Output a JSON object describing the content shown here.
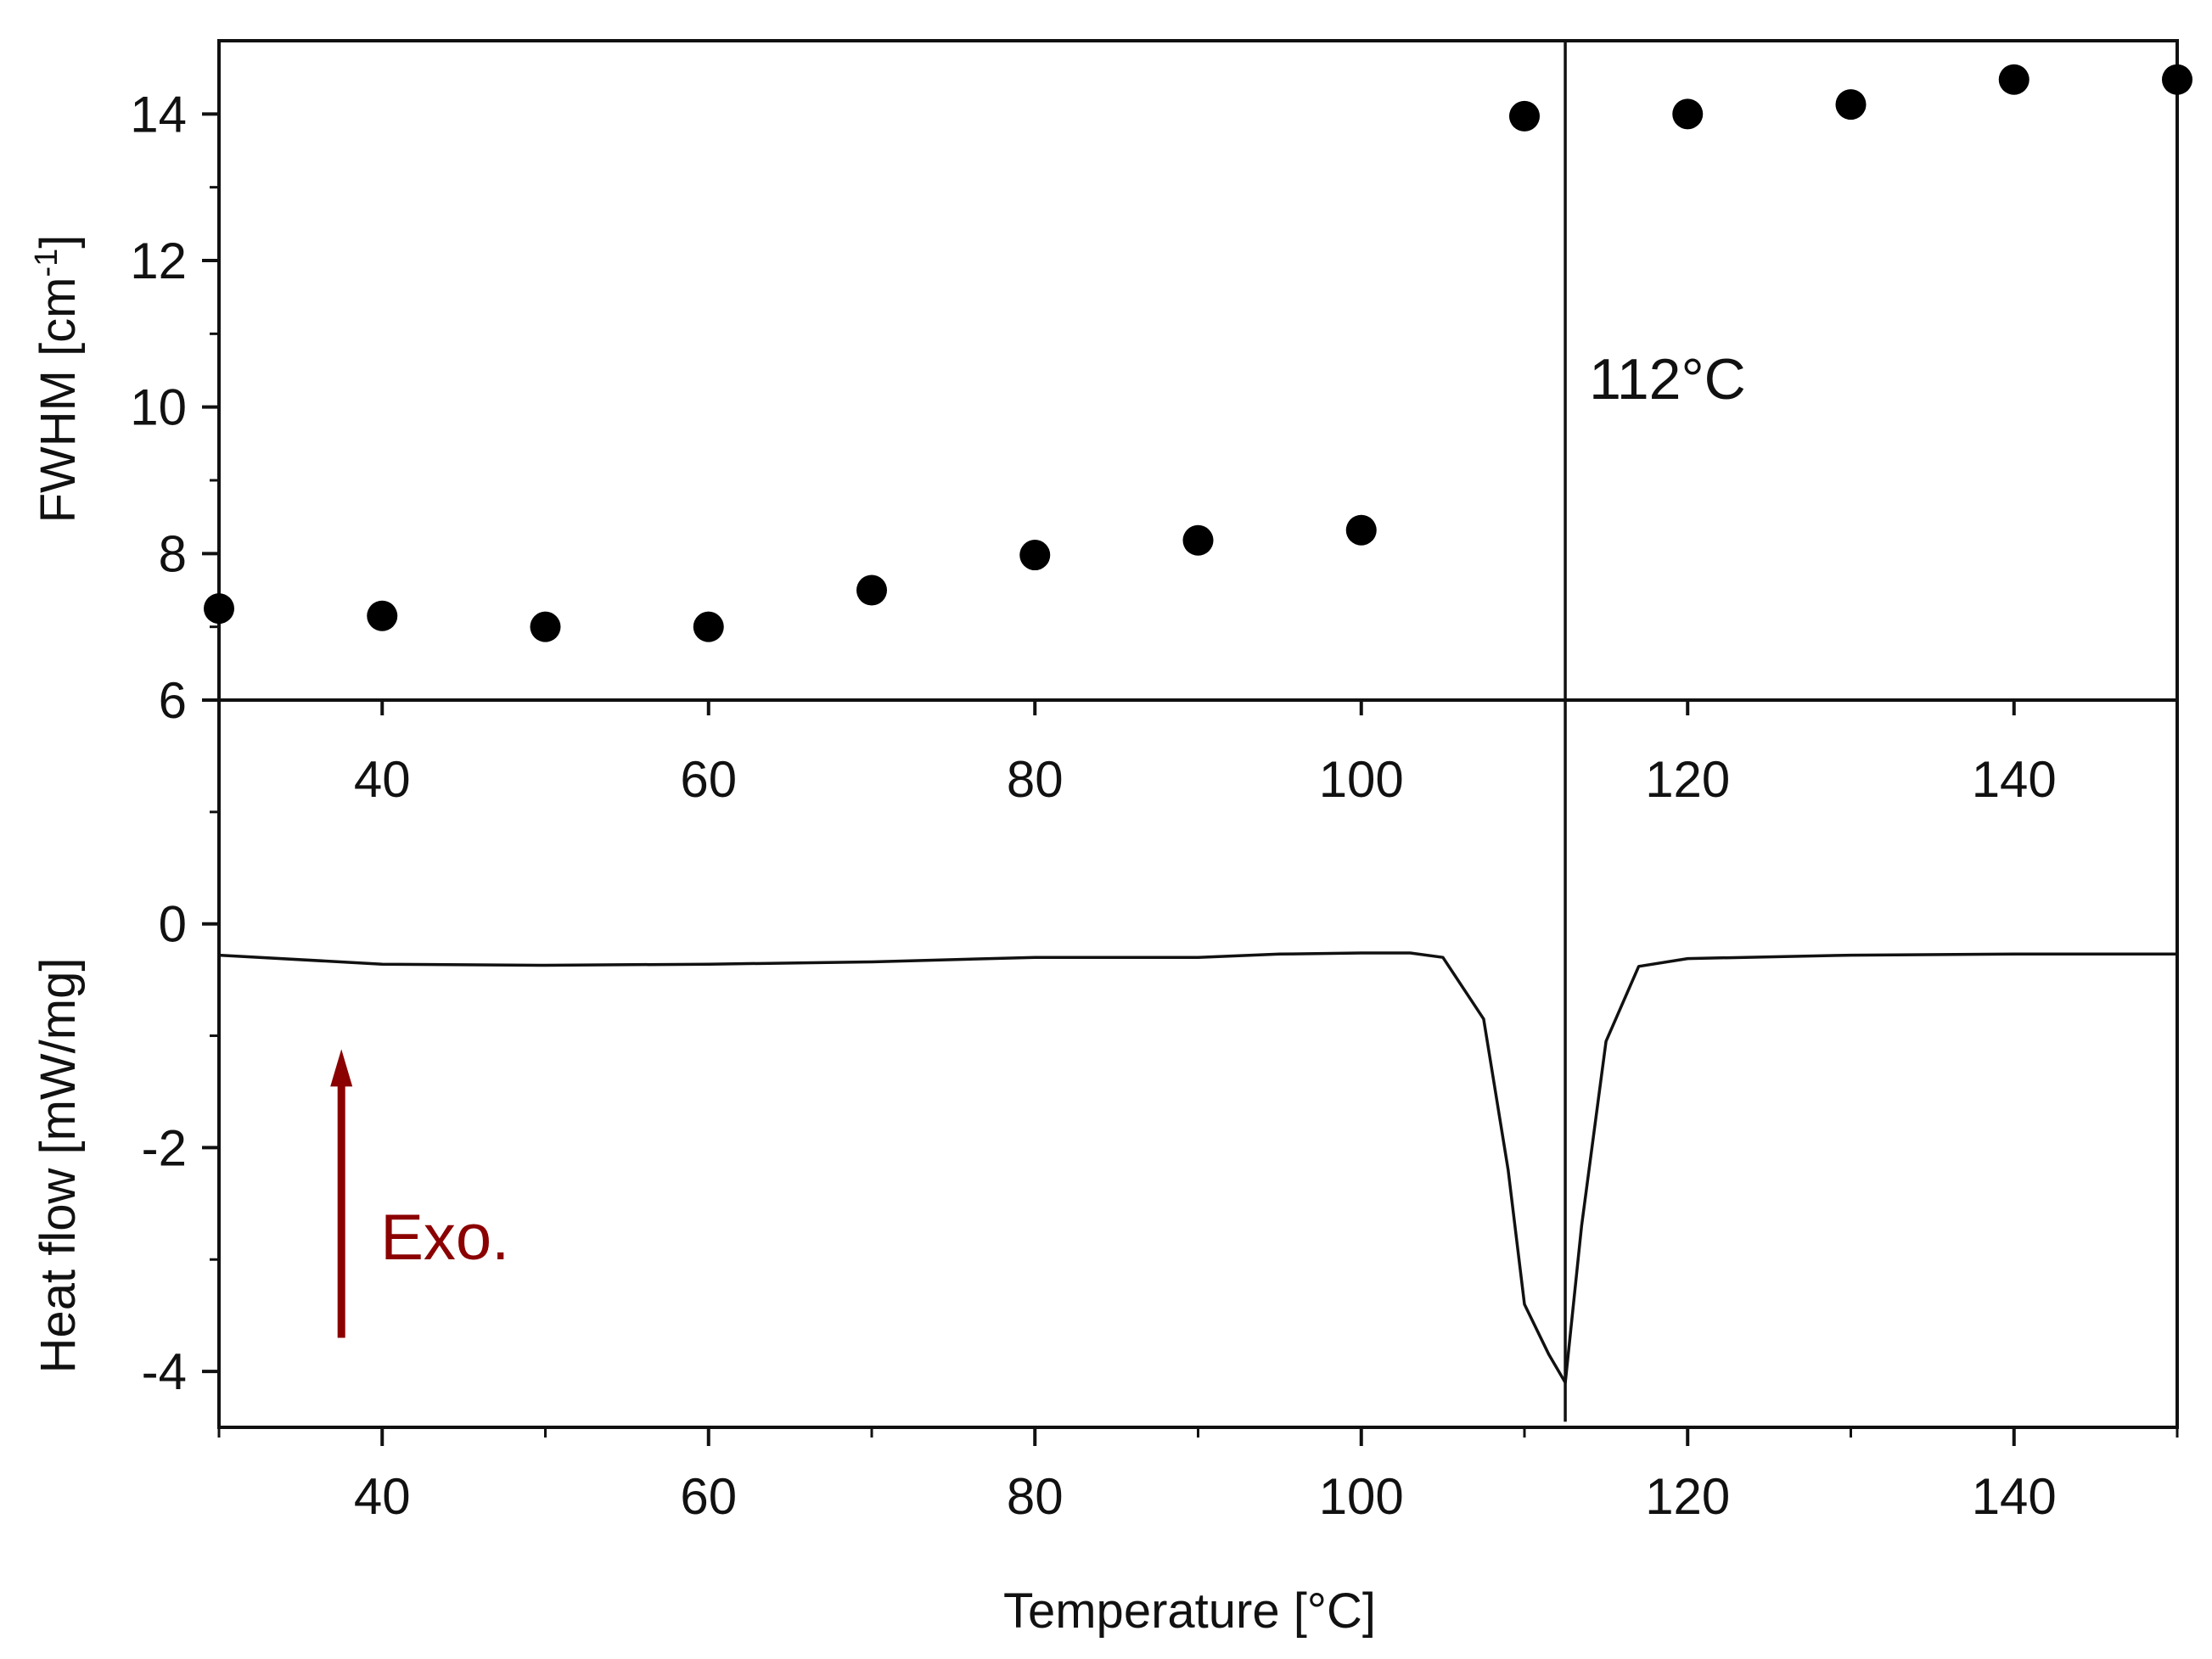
{
  "chart_data": [
    {
      "type": "scatter",
      "panel": "top",
      "title": "",
      "xlabel": "",
      "ylabel": "FWHM [cm⁻¹]",
      "xlim": [
        30,
        150
      ],
      "ylim": [
        6,
        15
      ],
      "x_ticks": [
        40,
        60,
        80,
        100,
        120,
        140
      ],
      "x_tick_labels": [
        "40",
        "60",
        "80",
        "100",
        "120",
        "140"
      ],
      "y_ticks": [
        6,
        8,
        10,
        12,
        14
      ],
      "y_tick_labels": [
        "6",
        "8",
        "10",
        "12",
        "14"
      ],
      "series": [
        {
          "name": "FWHM",
          "x": [
            30,
            40,
            50,
            60,
            70,
            80,
            90,
            100,
            110,
            120,
            130,
            140,
            150
          ],
          "values": [
            7.25,
            7.15,
            7.0,
            7.0,
            7.5,
            7.98,
            8.18,
            8.32,
            13.97,
            14.0,
            14.13,
            14.47,
            14.47
          ]
        }
      ]
    },
    {
      "type": "line",
      "panel": "bottom",
      "title": "",
      "xlabel": "Temperature [°C]",
      "ylabel": "Heat flow [mW/mg]",
      "xlim": [
        30,
        150
      ],
      "ylim": [
        -4.5,
        2.0
      ],
      "x_ticks": [
        40,
        60,
        80,
        100,
        120,
        140
      ],
      "x_tick_labels": [
        "40",
        "60",
        "80",
        "100",
        "120",
        "140"
      ],
      "y_ticks": [
        -4,
        -2,
        0
      ],
      "y_tick_labels": [
        "-4",
        "-2",
        "0"
      ],
      "series": [
        {
          "name": "DSC heat flow",
          "x": [
            30,
            40,
            50,
            60,
            70,
            80,
            90,
            95,
            100,
            103,
            105,
            107.5,
            109,
            110,
            111.5,
            112.5,
            113.5,
            115,
            117,
            120,
            130,
            140,
            150
          ],
          "values": [
            -0.28,
            -0.36,
            -0.37,
            -0.36,
            -0.34,
            -0.3,
            -0.3,
            -0.27,
            -0.26,
            -0.26,
            -0.3,
            -0.85,
            -2.2,
            -3.4,
            -3.85,
            -4.1,
            -2.7,
            -1.05,
            -0.38,
            -0.31,
            -0.28,
            -0.27,
            -0.27
          ]
        }
      ],
      "annotations": {
        "vertical_line_x": 112.5,
        "vertical_line_label": "112°C",
        "exo_label": "Exo.",
        "exo_arrow_from": -3.7,
        "exo_arrow_to": -1.15,
        "exo_arrow_x": 37.5,
        "exo_color": "#8b0000"
      }
    }
  ]
}
